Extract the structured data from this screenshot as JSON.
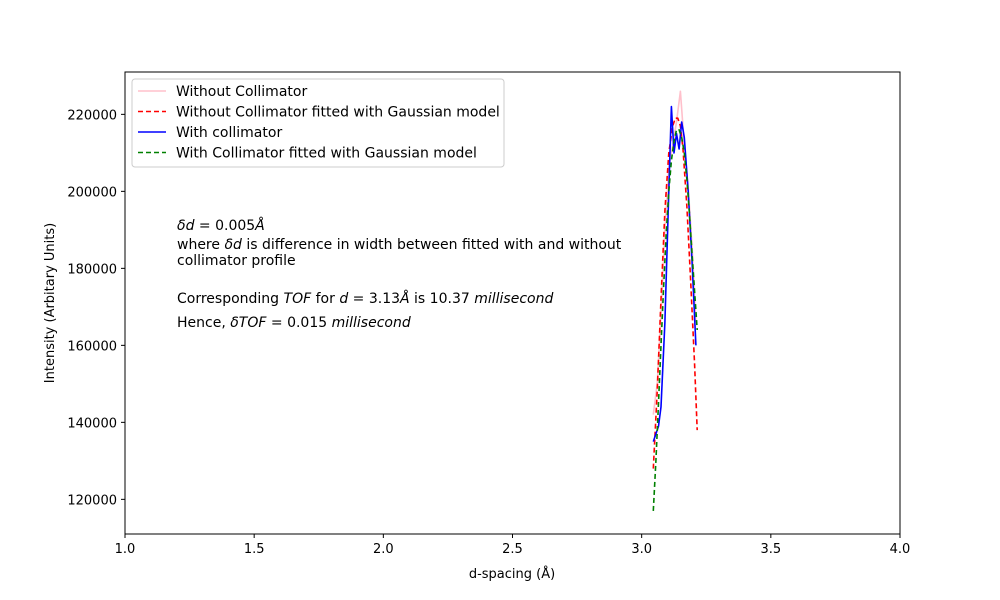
{
  "chart_data": {
    "type": "line",
    "title": "",
    "xlabel": "d-spacing (Å)",
    "ylabel": "Intensity (Arbitary Units)",
    "xlim": [
      1.0,
      4.0
    ],
    "ylim": [
      111000,
      231000
    ],
    "xticks": [
      1.0,
      1.5,
      2.0,
      2.5,
      3.0,
      3.5,
      4.0
    ],
    "xtick_labels": [
      "1.0",
      "1.5",
      "2.0",
      "2.5",
      "3.0",
      "3.5",
      "4.0"
    ],
    "yticks": [
      120000,
      140000,
      160000,
      180000,
      200000,
      220000
    ],
    "ytick_labels": [
      "120000",
      "140000",
      "160000",
      "180000",
      "200000",
      "220000"
    ],
    "grid": false,
    "legend_position": "top-left",
    "series": [
      {
        "name": "Without Collimator",
        "color": "#ffc0cb",
        "dash": "solid",
        "x": [
          3.045,
          3.06,
          3.075,
          3.09,
          3.105,
          3.12,
          3.135,
          3.15,
          3.165,
          3.18,
          3.195,
          3.21
        ],
        "y": [
          142000,
          150000,
          168000,
          190000,
          206000,
          212000,
          218000,
          226000,
          212000,
          201000,
          186000,
          166000
        ]
      },
      {
        "name": "Without Collimator fitted with Gaussian model",
        "color": "#ff0000",
        "dash": "dashed",
        "x": [
          3.045,
          3.06,
          3.075,
          3.09,
          3.105,
          3.12,
          3.13,
          3.14,
          3.15,
          3.16,
          3.175,
          3.19,
          3.205,
          3.215
        ],
        "y": [
          128000,
          148000,
          172000,
          195000,
          210000,
          217000,
          219000,
          219000,
          217000,
          211000,
          196000,
          176000,
          155000,
          138000
        ]
      },
      {
        "name": "With collimator",
        "color": "#0000ff",
        "dash": "solid",
        "x": [
          3.045,
          3.055,
          3.065,
          3.075,
          3.09,
          3.105,
          3.115,
          3.125,
          3.135,
          3.145,
          3.155,
          3.165,
          3.18,
          3.195,
          3.21
        ],
        "y": [
          135000,
          137000,
          139000,
          144000,
          166000,
          200000,
          222000,
          210000,
          215000,
          211000,
          218000,
          214000,
          200000,
          182000,
          160000
        ]
      },
      {
        "name": "With Collimator fitted with Gaussian model",
        "color": "#008000",
        "dash": "dashed",
        "x": [
          3.045,
          3.055,
          3.065,
          3.075,
          3.085,
          3.095,
          3.105,
          3.115,
          3.125,
          3.135,
          3.145,
          3.155,
          3.165,
          3.175,
          3.185,
          3.195,
          3.205,
          3.215
        ],
        "y": [
          117000,
          130000,
          145000,
          160000,
          175000,
          189000,
          200000,
          208000,
          213000,
          216000,
          216000,
          214000,
          210000,
          203000,
          194000,
          184000,
          174000,
          164000
        ]
      }
    ],
    "annotations": [
      {
        "id": "delta-d",
        "text": "δd = 0.005Å"
      },
      {
        "id": "where-line1",
        "text": "where δd is difference in width between fitted with and without"
      },
      {
        "id": "where-line2",
        "text": "collimator profile"
      },
      {
        "id": "tof-line",
        "text": "Corresponding TOF for d = 3.13Å is 10.37 millisecond"
      },
      {
        "id": "hence-line",
        "text": "Hence, δTOF = 0.015 millisecond"
      }
    ]
  }
}
